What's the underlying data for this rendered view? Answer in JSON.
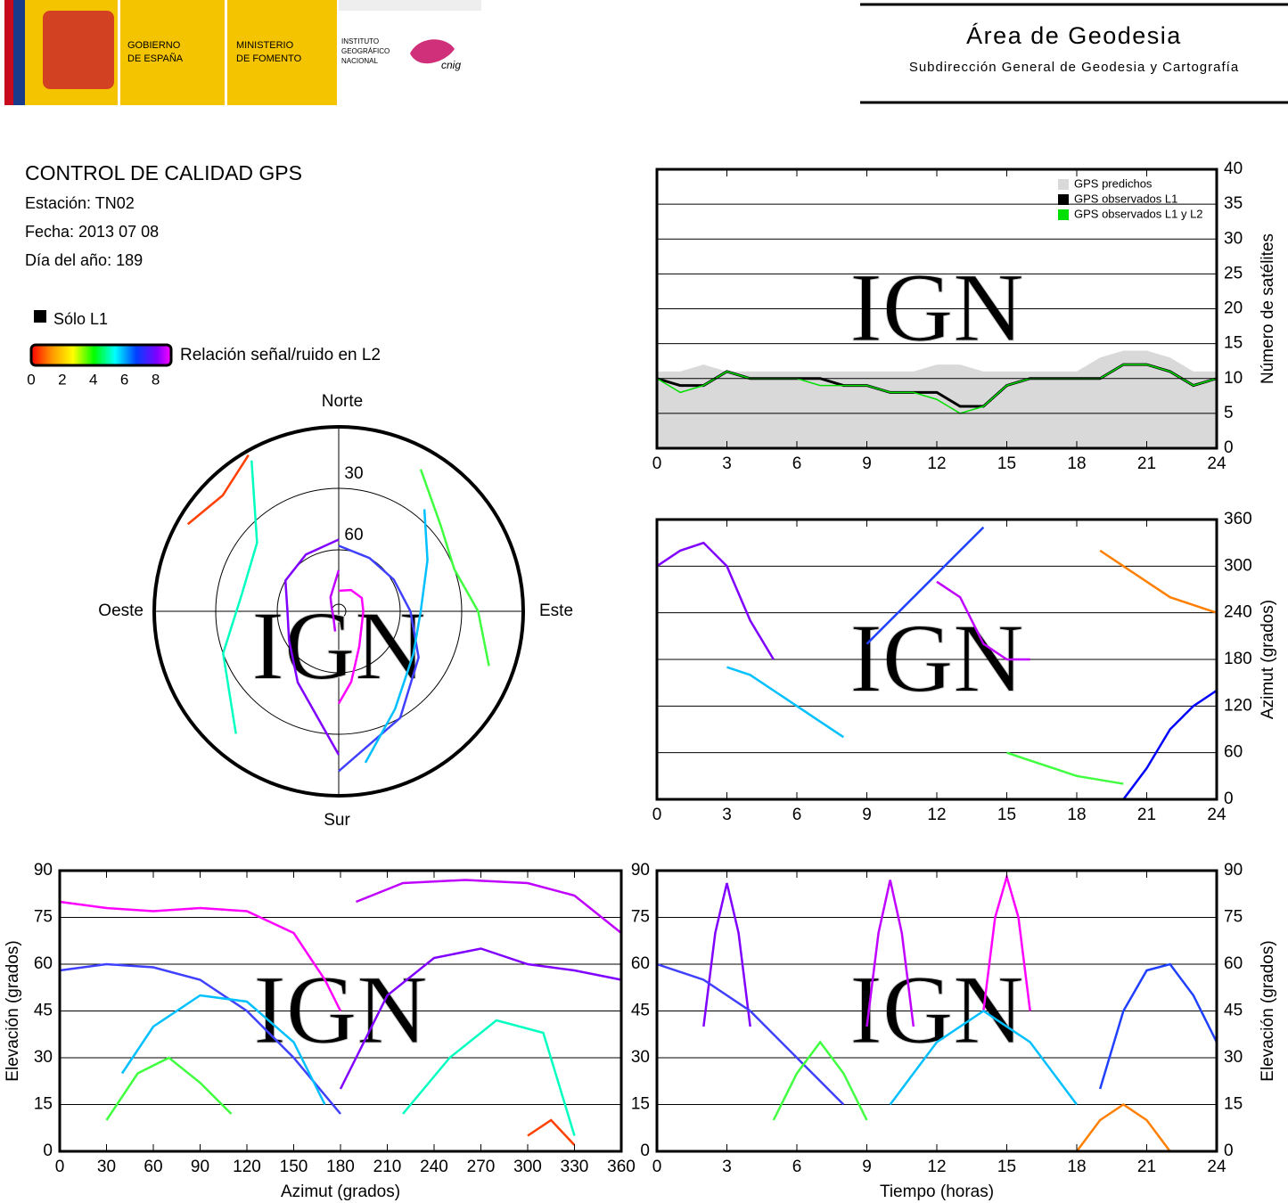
{
  "header": {
    "gobierno": [
      "GOBIERNO",
      "DE ESPAÑA"
    ],
    "ministerio": [
      "MINISTERIO",
      "DE FOMENTO"
    ],
    "instituto": [
      "INSTITUTO",
      "GEOGRÁFICO",
      "NACIONAL"
    ],
    "cnig": "cnig",
    "title": "Área de Geodesia",
    "subtitle": "Subdirección General de Geodesia y Cartografía"
  },
  "info": {
    "title": "CONTROL DE CALIDAD GPS",
    "lines": [
      "Estación: TN02",
      "Fecha: 2013 07 08",
      "Día del año: 189"
    ],
    "l1_only": "Sólo L1",
    "colorbar": {
      "label": "Relación señal/ruido en L2",
      "lim": [
        0,
        9
      ],
      "ticks": [
        0,
        2,
        4,
        6,
        8
      ]
    }
  },
  "chart_data": [
    {
      "type": "line",
      "watermark": "IGN",
      "y_label": "Número de satélites",
      "x": [
        0,
        1,
        2,
        3,
        4,
        5,
        6,
        7,
        8,
        9,
        10,
        11,
        12,
        13,
        14,
        15,
        16,
        17,
        18,
        19,
        20,
        21,
        22,
        23,
        24
      ],
      "series": [
        {
          "name": "GPS predichos",
          "color": "#d9d9d9",
          "fill": true,
          "values": [
            11,
            11,
            12,
            11,
            11,
            11,
            11,
            11,
            11,
            11,
            11,
            11,
            12,
            12,
            11,
            11,
            11,
            11,
            11,
            13,
            14,
            14,
            13,
            11,
            11
          ]
        },
        {
          "name": "GPS observados L1",
          "color": "#000000",
          "values": [
            10,
            9,
            9,
            11,
            10,
            10,
            10,
            10,
            9,
            9,
            8,
            8,
            8,
            6,
            6,
            9,
            10,
            10,
            10,
            10,
            12,
            12,
            11,
            9,
            10
          ]
        },
        {
          "name": "GPS observados L1 y L2",
          "color": "#00e000",
          "values": [
            10,
            8,
            9,
            11,
            10,
            10,
            10,
            9,
            9,
            9,
            8,
            8,
            7,
            5,
            6,
            9,
            10,
            10,
            10,
            10,
            12,
            12,
            11,
            9,
            10
          ]
        }
      ],
      "xlim": [
        0,
        24
      ],
      "xticks": [
        0,
        3,
        6,
        9,
        12,
        15,
        18,
        21,
        24
      ],
      "ylim": [
        0,
        40
      ],
      "yticks": [
        0,
        5,
        10,
        15,
        20,
        25,
        30,
        35,
        40
      ],
      "grid": true,
      "legend": "top-right"
    },
    {
      "type": "tracks",
      "watermark": "IGN",
      "y_label": "Azimut (grados)",
      "tracks": [
        {
          "color": "#8000ff",
          "x": [
            0,
            1,
            2,
            3,
            4,
            5
          ],
          "values": [
            300,
            320,
            330,
            300,
            230,
            180
          ]
        },
        {
          "color": "#00c0ff",
          "x": [
            3,
            4,
            5,
            6,
            7,
            8
          ],
          "values": [
            170,
            160,
            140,
            120,
            100,
            80
          ]
        },
        {
          "color": "#2040ff",
          "x": [
            9,
            10,
            11,
            12,
            13,
            14
          ],
          "values": [
            200,
            230,
            260,
            290,
            320,
            350
          ]
        },
        {
          "color": "#40ff40",
          "x": [
            15,
            16,
            17,
            18,
            19,
            20
          ],
          "values": [
            60,
            50,
            40,
            30,
            25,
            20
          ]
        },
        {
          "color": "#c000ff",
          "x": [
            12,
            13,
            14,
            15,
            16
          ],
          "values": [
            280,
            260,
            200,
            180,
            180
          ]
        },
        {
          "color": "#ff8000",
          "x": [
            19,
            20,
            21,
            22,
            23,
            24
          ],
          "values": [
            320,
            300,
            280,
            260,
            250,
            240
          ]
        },
        {
          "color": "#0000ff",
          "x": [
            20,
            21,
            22,
            23,
            24
          ],
          "values": [
            0,
            40,
            90,
            120,
            140
          ]
        }
      ],
      "xlim": [
        0,
        24
      ],
      "xticks": [
        0,
        3,
        6,
        9,
        12,
        15,
        18,
        21,
        24
      ],
      "ylim": [
        0,
        360
      ],
      "yticks": [
        0,
        60,
        120,
        180,
        240,
        300,
        360
      ],
      "grid": true
    },
    {
      "type": "tracks",
      "watermark": "IGN",
      "x_label": "Azimut (grados)",
      "y_label": "Elevación (grados)",
      "tracks": [
        {
          "color": "#ff00ff",
          "x": [
            0,
            30,
            60,
            90,
            120,
            150,
            170,
            180
          ],
          "values": [
            80,
            78,
            77,
            78,
            77,
            70,
            55,
            45
          ]
        },
        {
          "color": "#4040ff",
          "x": [
            0,
            30,
            60,
            90,
            120,
            150,
            180
          ],
          "values": [
            58,
            60,
            59,
            55,
            45,
            30,
            12
          ]
        },
        {
          "color": "#00c0ff",
          "x": [
            40,
            60,
            90,
            120,
            150,
            170
          ],
          "values": [
            25,
            40,
            50,
            48,
            35,
            15
          ]
        },
        {
          "color": "#40ff40",
          "x": [
            30,
            50,
            70,
            90,
            110
          ],
          "values": [
            10,
            25,
            30,
            22,
            12
          ]
        },
        {
          "color": "#8000ff",
          "x": [
            180,
            210,
            240,
            270,
            300,
            330,
            360
          ],
          "values": [
            20,
            50,
            62,
            65,
            60,
            58,
            55
          ]
        },
        {
          "color": "#00ffc0",
          "x": [
            220,
            250,
            280,
            310,
            330
          ],
          "values": [
            12,
            30,
            42,
            38,
            5
          ]
        },
        {
          "color": "#ff4000",
          "x": [
            300,
            315,
            330
          ],
          "values": [
            5,
            10,
            2
          ]
        },
        {
          "color": "#c000ff",
          "x": [
            190,
            220,
            260,
            300,
            330,
            360
          ],
          "values": [
            80,
            86,
            87,
            86,
            82,
            70
          ]
        }
      ],
      "xlim": [
        0,
        360
      ],
      "xticks": [
        0,
        30,
        60,
        90,
        120,
        150,
        180,
        210,
        240,
        270,
        300,
        330,
        360
      ],
      "ylim": [
        0,
        90
      ],
      "yticks": [
        0,
        15,
        30,
        45,
        60,
        75,
        90
      ],
      "grid": true
    },
    {
      "type": "tracks",
      "watermark": "IGN",
      "x_label": "Tiempo (horas)",
      "y_label": "Elevación (grados)",
      "tracks": [
        {
          "color": "#8000ff",
          "x": [
            2,
            2.5,
            3,
            3.5,
            4
          ],
          "values": [
            40,
            70,
            86,
            70,
            40
          ]
        },
        {
          "color": "#c000ff",
          "x": [
            9,
            9.5,
            10,
            10.5,
            11
          ],
          "values": [
            40,
            70,
            87,
            70,
            40
          ]
        },
        {
          "color": "#ff00ff",
          "x": [
            14,
            14.5,
            15,
            15.5,
            16
          ],
          "values": [
            45,
            75,
            88,
            75,
            45
          ]
        },
        {
          "color": "#4040ff",
          "x": [
            0,
            2,
            4,
            6,
            8
          ],
          "values": [
            60,
            55,
            45,
            30,
            15
          ]
        },
        {
          "color": "#00c0ff",
          "x": [
            10,
            12,
            14,
            16,
            18
          ],
          "values": [
            15,
            35,
            45,
            35,
            15
          ]
        },
        {
          "color": "#40ff40",
          "x": [
            5,
            6,
            7,
            8,
            9
          ],
          "values": [
            10,
            25,
            35,
            25,
            10
          ]
        },
        {
          "color": "#ff8000",
          "x": [
            18,
            19,
            20,
            21,
            22
          ],
          "values": [
            0,
            10,
            15,
            10,
            0
          ]
        },
        {
          "color": "#2040ff",
          "x": [
            19,
            20,
            21,
            22,
            23,
            24
          ],
          "values": [
            20,
            45,
            58,
            60,
            50,
            35
          ]
        }
      ],
      "xlim": [
        0,
        24
      ],
      "xticks": [
        0,
        3,
        6,
        9,
        12,
        15,
        18,
        21,
        24
      ],
      "ylim": [
        0,
        90
      ],
      "yticks": [
        0,
        15,
        30,
        45,
        60,
        75,
        90
      ],
      "grid": true
    },
    {
      "type": "polar",
      "watermark": "IGN",
      "directions": [
        "Norte",
        "Este",
        "Sur",
        "Oeste"
      ],
      "rlim": [
        0,
        90
      ],
      "rticks": [
        30,
        60
      ],
      "tracks": [
        {
          "color": "#ff00ff",
          "x": [
            0,
            30,
            60,
            90,
            120,
            150,
            170,
            180
          ],
          "values": [
            80,
            78,
            77,
            78,
            77,
            70,
            55,
            45
          ]
        },
        {
          "color": "#4040ff",
          "x": [
            0,
            30,
            60,
            90,
            120,
            150,
            180
          ],
          "values": [
            58,
            60,
            59,
            55,
            45,
            30,
            12
          ]
        },
        {
          "color": "#00c0ff",
          "x": [
            40,
            60,
            90,
            120,
            150,
            170
          ],
          "values": [
            25,
            40,
            50,
            48,
            35,
            15
          ]
        },
        {
          "color": "#40ff40",
          "x": [
            30,
            50,
            70,
            90,
            110
          ],
          "values": [
            10,
            25,
            30,
            22,
            12
          ]
        },
        {
          "color": "#8000ff",
          "x": [
            180,
            210,
            240,
            270,
            300,
            330,
            360
          ],
          "values": [
            20,
            50,
            62,
            65,
            60,
            58,
            55
          ]
        },
        {
          "color": "#00ffc0",
          "x": [
            220,
            250,
            280,
            310,
            330
          ],
          "values": [
            12,
            30,
            42,
            38,
            5
          ]
        },
        {
          "color": "#ff4000",
          "x": [
            300,
            315,
            330
          ],
          "values": [
            5,
            10,
            2
          ]
        },
        {
          "color": "#c000ff",
          "x": [
            190,
            220,
            260,
            300,
            330,
            360
          ],
          "values": [
            80,
            86,
            87,
            86,
            82,
            70
          ]
        }
      ]
    }
  ]
}
